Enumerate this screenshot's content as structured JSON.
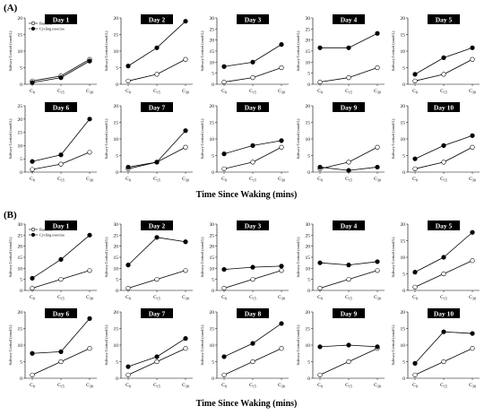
{
  "figure": {
    "panels": [
      {
        "label": "(A)",
        "xlabel": "Time Since Waking (mins)",
        "legend": {
          "baseline": "Baseline",
          "exercise": "Cycling exercise"
        },
        "charts": [
          {
            "title": "Day 1",
            "ymax": 20,
            "baseline": [
              1,
              2.5,
              7.5
            ],
            "exercise": [
              0.5,
              2,
              7
            ]
          },
          {
            "title": "Day 2",
            "ymax": 20,
            "baseline": [
              1,
              3,
              7.5
            ],
            "exercise": [
              5.5,
              11,
              19
            ]
          },
          {
            "title": "Day 3",
            "ymax": 30,
            "baseline": [
              1,
              3,
              7.5
            ],
            "exercise": [
              8,
              10,
              18
            ]
          },
          {
            "title": "Day 4",
            "ymax": 30,
            "baseline": [
              1,
              3,
              7.5
            ],
            "exercise": [
              16.5,
              16.5,
              23
            ]
          },
          {
            "title": "Day 5",
            "ymax": 20,
            "baseline": [
              1,
              3,
              7.5
            ],
            "exercise": [
              3,
              8,
              11
            ]
          },
          {
            "title": "Day 6",
            "ymax": 25,
            "baseline": [
              1,
              3,
              7.5
            ],
            "exercise": [
              4,
              6.5,
              20
            ]
          },
          {
            "title": "Day 7",
            "ymax": 20,
            "baseline": [
              1,
              3,
              7.5
            ],
            "exercise": [
              1.5,
              3,
              12.5
            ]
          },
          {
            "title": "Day 8",
            "ymax": 20,
            "baseline": [
              1,
              3,
              7.5
            ],
            "exercise": [
              5.5,
              8,
              9.5
            ]
          },
          {
            "title": "Day 9",
            "ymax": 20,
            "baseline": [
              1,
              3,
              7.5
            ],
            "exercise": [
              1.5,
              0.5,
              1.5
            ]
          },
          {
            "title": "Day 10",
            "ymax": 20,
            "baseline": [
              1,
              3,
              7.5
            ],
            "exercise": [
              4,
              8,
              11
            ]
          }
        ]
      },
      {
        "label": "(B)",
        "xlabel": "Time Since Waking (mins)",
        "legend": {
          "baseline": "Baseline",
          "exercise": "Cycling exercise"
        },
        "charts": [
          {
            "title": "Day 1",
            "ymax": 30,
            "baseline": [
              1,
              5,
              9
            ],
            "exercise": [
              5.5,
              14,
              25
            ]
          },
          {
            "title": "Day 2",
            "ymax": 30,
            "baseline": [
              1,
              5,
              9
            ],
            "exercise": [
              11.5,
              24,
              22
            ]
          },
          {
            "title": "Day 3",
            "ymax": 30,
            "baseline": [
              1,
              5,
              9
            ],
            "exercise": [
              9.5,
              10.5,
              11
            ]
          },
          {
            "title": "Day 4",
            "ymax": 30,
            "baseline": [
              1,
              5,
              9
            ],
            "exercise": [
              12.5,
              11.5,
              13
            ]
          },
          {
            "title": "Day 5",
            "ymax": 20,
            "baseline": [
              1,
              5,
              9
            ],
            "exercise": [
              5.5,
              10,
              17.5
            ]
          },
          {
            "title": "Day 6",
            "ymax": 20,
            "baseline": [
              1,
              5,
              9
            ],
            "exercise": [
              7.5,
              8,
              18
            ]
          },
          {
            "title": "Day 7",
            "ymax": 20,
            "baseline": [
              1,
              5,
              9
            ],
            "exercise": [
              3.5,
              6.5,
              12
            ]
          },
          {
            "title": "Day 8",
            "ymax": 20,
            "baseline": [
              1,
              5,
              9
            ],
            "exercise": [
              6.5,
              10.5,
              16.5
            ]
          },
          {
            "title": "Day 9",
            "ymax": 20,
            "baseline": [
              1,
              5,
              9
            ],
            "exercise": [
              9.5,
              10,
              9.5
            ]
          },
          {
            "title": "Day 10",
            "ymax": 20,
            "baseline": [
              1,
              5,
              9
            ],
            "exercise": [
              4.5,
              14,
              13.5
            ]
          }
        ]
      }
    ]
  },
  "chart_data": {
    "type": "line",
    "x": [
      "C0",
      "C15",
      "C30"
    ],
    "ylabel": "Salivary Cortisol (nmol/L)",
    "xlabel": "Time Since Waking (mins)",
    "series_names": [
      "Baseline",
      "Cycling exercise"
    ],
    "grid": false
  }
}
